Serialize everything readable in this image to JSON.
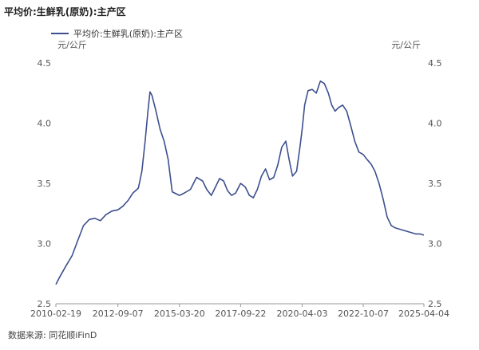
{
  "title": "平均价:生鲜乳(原奶):主产区",
  "source": "数据来源: 同花顺iFinD",
  "chart_data": {
    "type": "line",
    "title": "平均价:生鲜乳(原奶):主产区",
    "xlabel": "",
    "ylabel": "元/公斤",
    "ylabel_right": "元/公斤",
    "ylim": [
      2.5,
      4.5
    ],
    "yticks": [
      2.5,
      3.0,
      3.5,
      4.0,
      4.5
    ],
    "ytick_labels": [
      "2.5",
      "3.0",
      "3.5",
      "4.0",
      "4.5"
    ],
    "xticks": [
      "2010-02-19",
      "2012-09-07",
      "2015-03-20",
      "2017-09-22",
      "2020-04-03",
      "2022-10-07",
      "2025-04-04"
    ],
    "xlim": [
      "2010-02-19",
      "2025-04-04"
    ],
    "legend_position": "top-left",
    "grid": false,
    "color": "#3d4f8e",
    "series": [
      {
        "name": "平均价:生鲜乳(原奶):主产区",
        "x": [
          "2010-02-19",
          "2010-04-15",
          "2010-07-05",
          "2010-10-20",
          "2011-01-10",
          "2011-04-10",
          "2011-07-05",
          "2011-09-25",
          "2011-12-20",
          "2012-03-10",
          "2012-06-10",
          "2012-09-07",
          "2012-11-20",
          "2013-02-10",
          "2013-04-20",
          "2013-07-10",
          "2013-09-01",
          "2013-10-20",
          "2013-12-01",
          "2014-01-01",
          "2014-02-01",
          "2014-04-01",
          "2014-06-01",
          "2014-08-01",
          "2014-10-01",
          "2014-12-01",
          "2015-03-20",
          "2015-06-01",
          "2015-09-01",
          "2015-12-01",
          "2016-03-01",
          "2016-05-01",
          "2016-07-10",
          "2016-09-10",
          "2016-11-10",
          "2017-01-10",
          "2017-03-10",
          "2017-05-10",
          "2017-07-10",
          "2017-09-22",
          "2017-12-01",
          "2018-02-01",
          "2018-04-01",
          "2018-06-01",
          "2018-08-01",
          "2018-10-01",
          "2018-12-01",
          "2019-02-01",
          "2019-04-01",
          "2019-06-01",
          "2019-08-01",
          "2019-09-20",
          "2019-11-10",
          "2020-01-10",
          "2020-03-01",
          "2020-04-03",
          "2020-05-10",
          "2020-07-01",
          "2020-09-01",
          "2020-11-01",
          "2021-01-01",
          "2021-03-01",
          "2021-05-01",
          "2021-06-20",
          "2021-08-10",
          "2021-10-01",
          "2021-12-01",
          "2022-02-01",
          "2022-04-01",
          "2022-06-01",
          "2022-08-01",
          "2022-10-07",
          "2022-12-01",
          "2023-02-01",
          "2023-04-01",
          "2023-06-01",
          "2023-08-01",
          "2023-10-01",
          "2023-12-01",
          "2024-02-01",
          "2024-04-01",
          "2024-06-01",
          "2024-08-01",
          "2024-10-01",
          "2024-12-01",
          "2025-02-01",
          "2025-04-04"
        ],
        "values": [
          2.66,
          2.72,
          2.8,
          2.9,
          3.02,
          3.15,
          3.2,
          3.21,
          3.19,
          3.24,
          3.27,
          3.28,
          3.31,
          3.36,
          3.42,
          3.46,
          3.6,
          3.85,
          4.1,
          4.26,
          4.23,
          4.1,
          3.95,
          3.85,
          3.7,
          3.43,
          3.4,
          3.42,
          3.45,
          3.55,
          3.52,
          3.45,
          3.4,
          3.47,
          3.54,
          3.52,
          3.44,
          3.4,
          3.42,
          3.5,
          3.47,
          3.4,
          3.38,
          3.45,
          3.56,
          3.62,
          3.53,
          3.55,
          3.65,
          3.8,
          3.85,
          3.7,
          3.56,
          3.6,
          3.8,
          3.95,
          4.15,
          4.27,
          4.28,
          4.25,
          4.35,
          4.33,
          4.25,
          4.15,
          4.1,
          4.13,
          4.15,
          4.1,
          3.98,
          3.85,
          3.76,
          3.74,
          3.7,
          3.66,
          3.6,
          3.5,
          3.37,
          3.22,
          3.15,
          3.13,
          3.12,
          3.11,
          3.1,
          3.09,
          3.08,
          3.08,
          3.07
        ]
      }
    ]
  }
}
